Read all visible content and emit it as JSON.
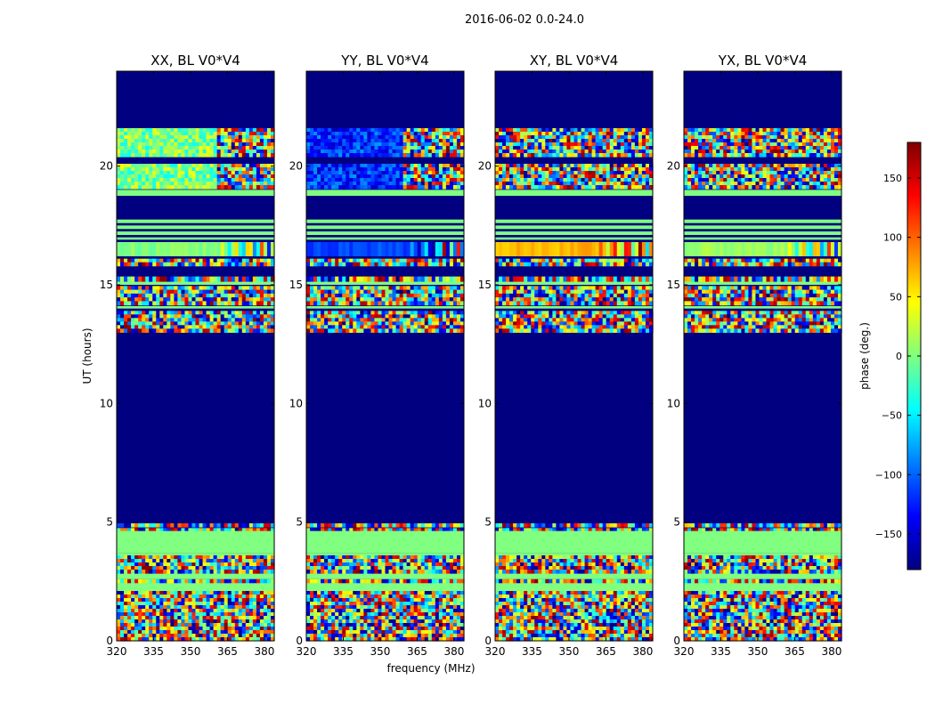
{
  "chart_data": {
    "type": "heatmap",
    "suptitle": "2016-06-02 0.0-24.0",
    "xlabel": "frequency (MHz)",
    "ylabel": "UT (hours)",
    "xlim": [
      320,
      384
    ],
    "ylim": [
      0,
      24
    ],
    "xticks": [
      320,
      335,
      350,
      365,
      380
    ],
    "yticks": [
      0,
      5,
      10,
      15,
      20
    ],
    "panels": [
      {
        "title": "XX, BL V0*V4"
      },
      {
        "title": "YY, BL V0*V4"
      },
      {
        "title": "XY, BL V0*V4"
      },
      {
        "title": "YX, BL V0*V4"
      }
    ],
    "colorbar": {
      "label": "phase (deg.)",
      "range": [
        -180,
        180
      ],
      "ticks": [
        -150,
        -100,
        -50,
        0,
        50,
        100,
        150
      ],
      "tick_labels": [
        "−150",
        "−100",
        "−50",
        "0",
        "50",
        "100",
        "150"
      ],
      "colormap": "jet",
      "colors": [
        "#00007f",
        "#0000ff",
        "#007fff",
        "#00ffff",
        "#7fff7f",
        "#ffff00",
        "#ff7f00",
        "#ff0000",
        "#7f0000"
      ]
    },
    "empty_value": -180,
    "bands": [
      {
        "y0": 0.0,
        "y1": 2.1,
        "kind": "noise"
      },
      {
        "y0": 2.1,
        "y1": 2.45,
        "kind": "flat"
      },
      {
        "y0": 2.45,
        "y1": 2.6,
        "kind": "noise"
      },
      {
        "y0": 2.6,
        "y1": 2.85,
        "kind": "flat"
      },
      {
        "y0": 2.85,
        "y1": 3.6,
        "kind": "noise"
      },
      {
        "y0": 3.6,
        "y1": 3.7,
        "kind": "flat"
      },
      {
        "y0": 3.7,
        "y1": 4.65,
        "kind": "flat"
      },
      {
        "y0": 4.65,
        "y1": 4.75,
        "kind": "noise"
      },
      {
        "y0": 4.8,
        "y1": 4.95,
        "kind": "noise"
      },
      {
        "y0": 13.0,
        "y1": 13.9,
        "kind": "noise"
      },
      {
        "y0": 14.0,
        "y1": 14.1,
        "kind": "flat"
      },
      {
        "y0": 14.15,
        "y1": 14.95,
        "kind": "noise"
      },
      {
        "y0": 15.0,
        "y1": 15.15,
        "kind": "flat"
      },
      {
        "y0": 15.15,
        "y1": 15.35,
        "kind": "noise"
      },
      {
        "y0": 15.8,
        "y1": 16.1,
        "kind": "noise"
      },
      {
        "y0": 16.2,
        "y1": 16.8,
        "kind": "strong"
      },
      {
        "y0": 16.9,
        "y1": 17.0,
        "kind": "flat"
      },
      {
        "y0": 17.1,
        "y1": 17.25,
        "kind": "flat"
      },
      {
        "y0": 17.35,
        "y1": 17.5,
        "kind": "flat"
      },
      {
        "y0": 17.6,
        "y1": 17.75,
        "kind": "flat"
      },
      {
        "y0": 18.75,
        "y1": 19.0,
        "kind": "flat"
      },
      {
        "y0": 19.05,
        "y1": 20.1,
        "kind": "noise"
      },
      {
        "y0": 20.4,
        "y1": 21.6,
        "kind": "noise"
      }
    ],
    "panel_strong_phase": [
      0,
      -110,
      70,
      10
    ],
    "panel_noise_phase": [
      0,
      -120,
      0,
      0
    ]
  }
}
